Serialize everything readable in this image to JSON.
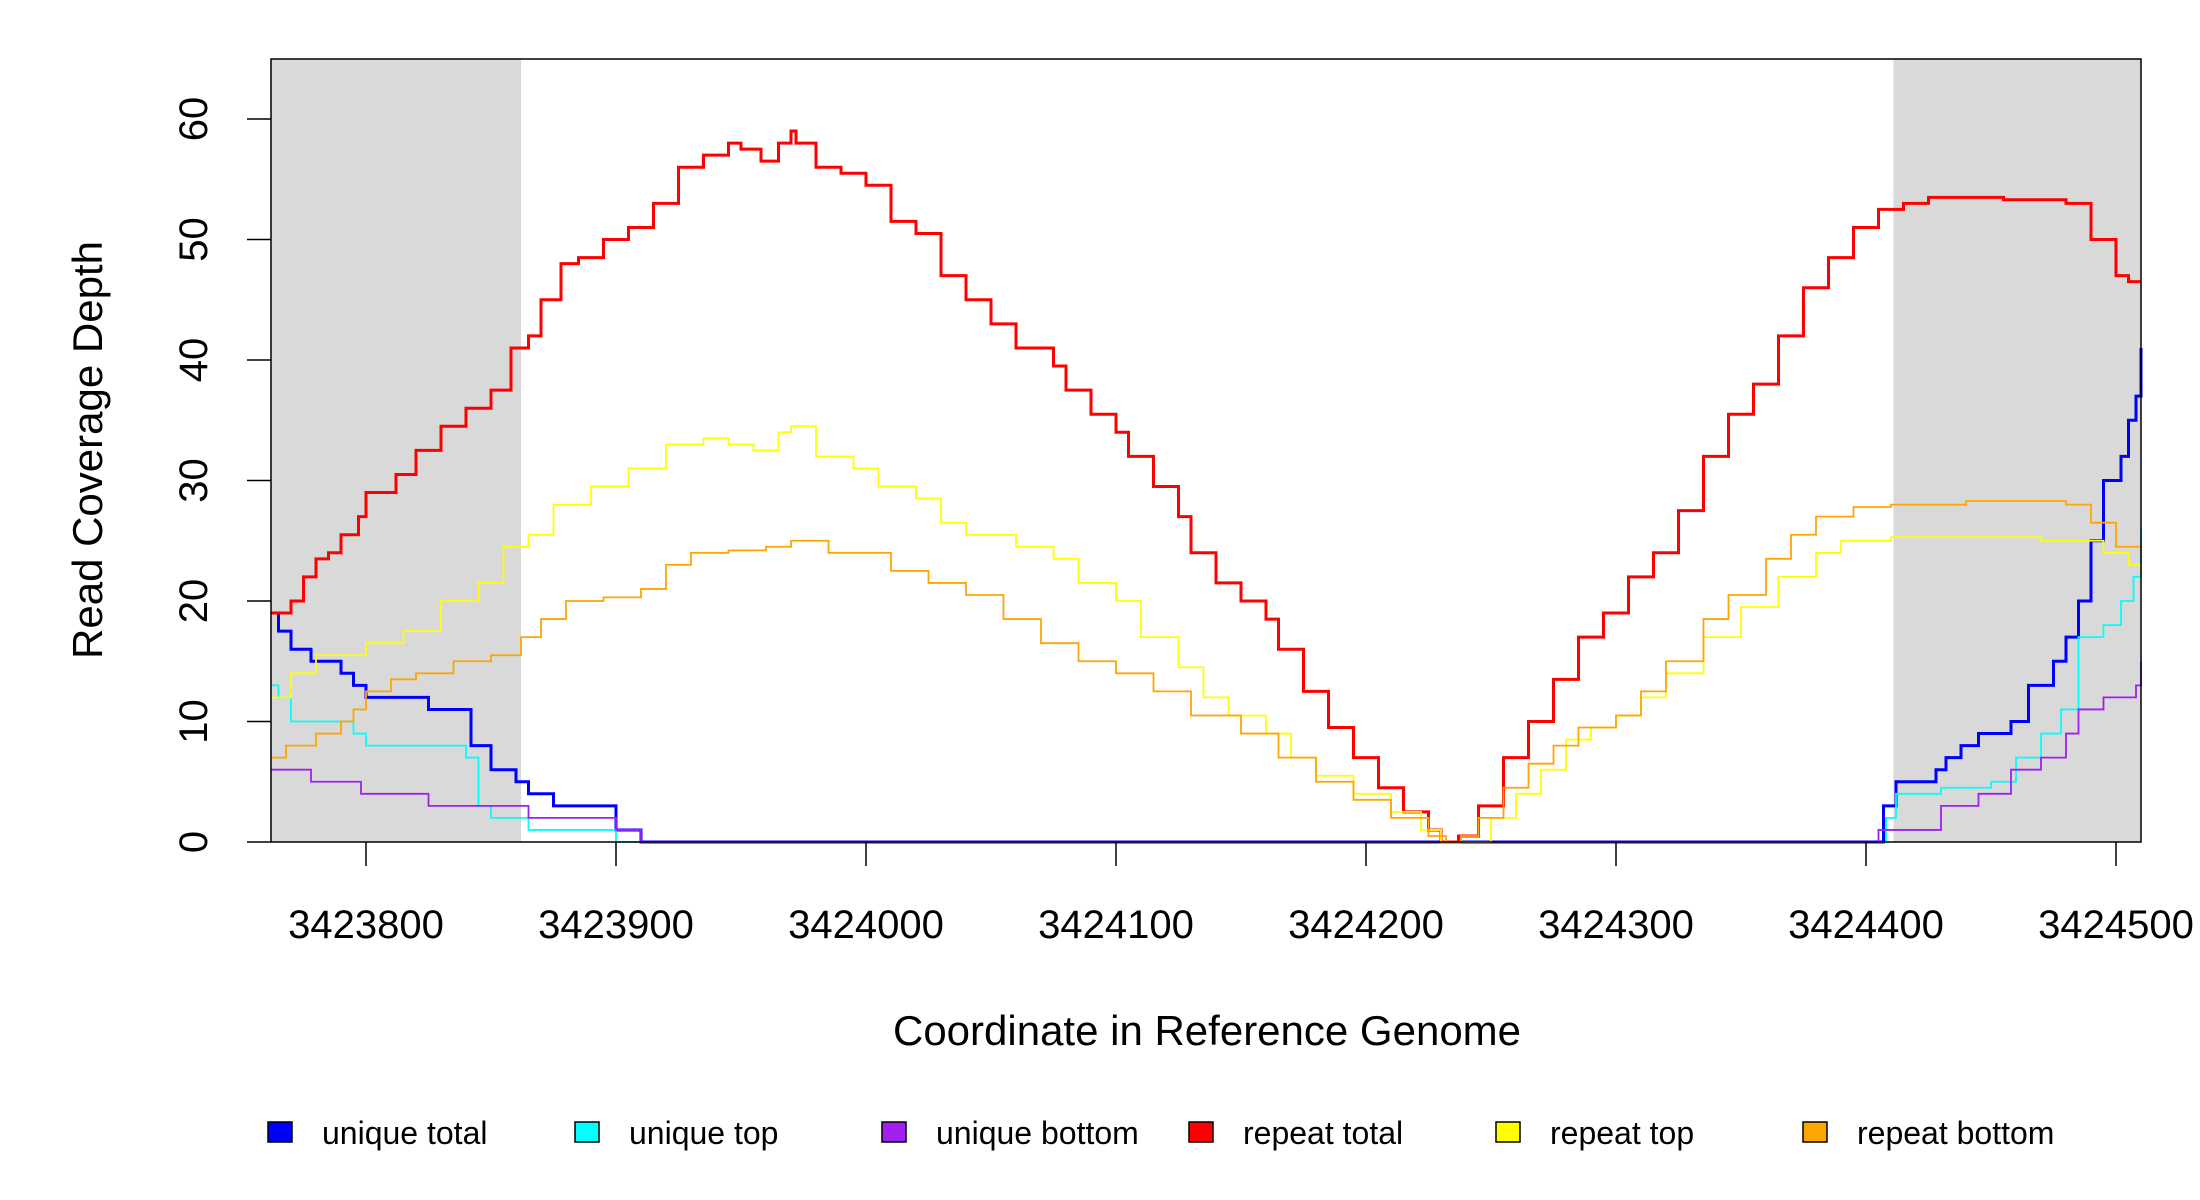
{
  "chart_data": {
    "type": "line",
    "title": "",
    "xlabel": "Coordinate in Reference Genome",
    "ylabel": "Read Coverage Depth",
    "xlim": [
      3423762,
      3424510
    ],
    "ylim": [
      0,
      65
    ],
    "x_ticks": [
      3423800,
      3423900,
      3424000,
      3424100,
      3424200,
      3424300,
      3424400,
      3424500
    ],
    "x_tick_labels": [
      "3423800",
      "3423900",
      "3424000",
      "3424100",
      "3424200",
      "3424300",
      "3424400",
      "3424500"
    ],
    "y_ticks": [
      0,
      10,
      20,
      30,
      40,
      50,
      60
    ],
    "y_tick_labels": [
      "0",
      "10",
      "20",
      "30",
      "40",
      "50",
      "60"
    ],
    "grid": false,
    "legend_placement": "bottom",
    "shaded_regions": [
      [
        3423762,
        3423862
      ],
      [
        3424411,
        3424510
      ]
    ],
    "shade_color": "#d9d9d9",
    "series": [
      {
        "name": "unique total",
        "color": "#0000ff",
        "width": 3,
        "points": [
          [
            3423762,
            19
          ],
          [
            3423765,
            17.5
          ],
          [
            3423770,
            16
          ],
          [
            3423778,
            15
          ],
          [
            3423790,
            14
          ],
          [
            3423795,
            13
          ],
          [
            3423800,
            12
          ],
          [
            3423825,
            11
          ],
          [
            3423842,
            8
          ],
          [
            3423850,
            6
          ],
          [
            3423860,
            5
          ],
          [
            3423865,
            4
          ],
          [
            3423875,
            3
          ],
          [
            3423900,
            1
          ],
          [
            3423910,
            0
          ],
          [
            3424404,
            0
          ],
          [
            3424407,
            3
          ],
          [
            3424412,
            5
          ],
          [
            3424428,
            6
          ],
          [
            3424432,
            7
          ],
          [
            3424438,
            8
          ],
          [
            3424445,
            9
          ],
          [
            3424458,
            10
          ],
          [
            3424465,
            13
          ],
          [
            3424475,
            15
          ],
          [
            3424480,
            17
          ],
          [
            3424485,
            20
          ],
          [
            3424490,
            25
          ],
          [
            3424495,
            30
          ],
          [
            3424502,
            32
          ],
          [
            3424505,
            35
          ],
          [
            3424508,
            37
          ],
          [
            3424510,
            41
          ]
        ]
      },
      {
        "name": "unique top",
        "color": "#00ffff",
        "width": 1.8,
        "points": [
          [
            3423762,
            13
          ],
          [
            3423765,
            12
          ],
          [
            3423770,
            10
          ],
          [
            3423795,
            9
          ],
          [
            3423800,
            8
          ],
          [
            3423840,
            7
          ],
          [
            3423845,
            3
          ],
          [
            3423850,
            2
          ],
          [
            3423865,
            1
          ],
          [
            3423900,
            0
          ],
          [
            3424404,
            0
          ],
          [
            3424408,
            2
          ],
          [
            3424412,
            4
          ],
          [
            3424430,
            4.5
          ],
          [
            3424450,
            5
          ],
          [
            3424460,
            7
          ],
          [
            3424470,
            9
          ],
          [
            3424478,
            11
          ],
          [
            3424485,
            17
          ],
          [
            3424495,
            18
          ],
          [
            3424502,
            20
          ],
          [
            3424507,
            22
          ],
          [
            3424510,
            26
          ]
        ]
      },
      {
        "name": "unique bottom",
        "color": "#a020f0",
        "width": 1.8,
        "points": [
          [
            3423762,
            6
          ],
          [
            3423778,
            5
          ],
          [
            3423798,
            4
          ],
          [
            3423825,
            3
          ],
          [
            3423865,
            2
          ],
          [
            3423900,
            1
          ],
          [
            3423910,
            0
          ],
          [
            3424404,
            0
          ],
          [
            3424405,
            1
          ],
          [
            3424430,
            3
          ],
          [
            3424445,
            4
          ],
          [
            3424458,
            6
          ],
          [
            3424470,
            7
          ],
          [
            3424480,
            9
          ],
          [
            3424485,
            11
          ],
          [
            3424495,
            12
          ],
          [
            3424508,
            13
          ],
          [
            3424510,
            15
          ]
        ]
      },
      {
        "name": "repeat total",
        "color": "#ff0000",
        "width": 3,
        "points": [
          [
            3423762,
            19
          ],
          [
            3423770,
            20
          ],
          [
            3423775,
            22
          ],
          [
            3423780,
            23.5
          ],
          [
            3423785,
            24
          ],
          [
            3423790,
            25.5
          ],
          [
            3423797,
            27
          ],
          [
            3423800,
            29
          ],
          [
            3423812,
            30.5
          ],
          [
            3423820,
            32.5
          ],
          [
            3423830,
            34.5
          ],
          [
            3423840,
            36
          ],
          [
            3423850,
            37.5
          ],
          [
            3423858,
            41
          ],
          [
            3423865,
            42
          ],
          [
            3423870,
            45
          ],
          [
            3423878,
            48
          ],
          [
            3423885,
            48.5
          ],
          [
            3423895,
            50
          ],
          [
            3423905,
            51
          ],
          [
            3423915,
            53
          ],
          [
            3423925,
            56
          ],
          [
            3423935,
            57
          ],
          [
            3423945,
            58
          ],
          [
            3423950,
            57.5
          ],
          [
            3423958,
            56.5
          ],
          [
            3423965,
            58
          ],
          [
            3423970,
            59
          ],
          [
            3423972,
            58
          ],
          [
            3423980,
            56
          ],
          [
            3423990,
            55.5
          ],
          [
            3424000,
            54.5
          ],
          [
            3424010,
            51.5
          ],
          [
            3424020,
            50.5
          ],
          [
            3424030,
            47
          ],
          [
            3424040,
            45
          ],
          [
            3424050,
            43
          ],
          [
            3424060,
            41
          ],
          [
            3424075,
            39.5
          ],
          [
            3424080,
            37.5
          ],
          [
            3424090,
            35.5
          ],
          [
            3424100,
            34
          ],
          [
            3424105,
            32
          ],
          [
            3424115,
            29.5
          ],
          [
            3424125,
            27
          ],
          [
            3424130,
            24
          ],
          [
            3424140,
            21.5
          ],
          [
            3424150,
            20
          ],
          [
            3424160,
            18.5
          ],
          [
            3424165,
            16
          ],
          [
            3424175,
            12.5
          ],
          [
            3424185,
            9.5
          ],
          [
            3424195,
            7
          ],
          [
            3424205,
            4.5
          ],
          [
            3424215,
            2.5
          ],
          [
            3424225,
            1
          ],
          [
            3424230,
            0
          ],
          [
            3424237,
            0.5
          ],
          [
            3424245,
            3
          ],
          [
            3424255,
            7
          ],
          [
            3424265,
            10
          ],
          [
            3424275,
            13.5
          ],
          [
            3424285,
            17
          ],
          [
            3424295,
            19
          ],
          [
            3424305,
            22
          ],
          [
            3424315,
            24
          ],
          [
            3424325,
            27.5
          ],
          [
            3424335,
            32
          ],
          [
            3424345,
            35.5
          ],
          [
            3424355,
            38
          ],
          [
            3424365,
            42
          ],
          [
            3424375,
            46
          ],
          [
            3424385,
            48.5
          ],
          [
            3424395,
            51
          ],
          [
            3424405,
            52.5
          ],
          [
            3424415,
            53
          ],
          [
            3424425,
            53.5
          ],
          [
            3424440,
            53.5
          ],
          [
            3424455,
            53.3
          ],
          [
            3424470,
            53.3
          ],
          [
            3424480,
            53
          ],
          [
            3424490,
            50
          ],
          [
            3424500,
            47
          ],
          [
            3424505,
            46.5
          ],
          [
            3424510,
            46.5
          ]
        ]
      },
      {
        "name": "repeat top",
        "color": "#ffff00",
        "width": 1.8,
        "points": [
          [
            3423762,
            12
          ],
          [
            3423770,
            14
          ],
          [
            3423780,
            15.5
          ],
          [
            3423800,
            16.5
          ],
          [
            3423815,
            17.5
          ],
          [
            3423830,
            20
          ],
          [
            3423845,
            21.5
          ],
          [
            3423855,
            24.5
          ],
          [
            3423865,
            25.5
          ],
          [
            3423875,
            28
          ],
          [
            3423890,
            29.5
          ],
          [
            3423905,
            31
          ],
          [
            3423920,
            33
          ],
          [
            3423935,
            33.5
          ],
          [
            3423945,
            33
          ],
          [
            3423955,
            32.5
          ],
          [
            3423965,
            34
          ],
          [
            3423970,
            34.5
          ],
          [
            3423980,
            32
          ],
          [
            3423995,
            31
          ],
          [
            3424005,
            29.5
          ],
          [
            3424020,
            28.5
          ],
          [
            3424030,
            26.5
          ],
          [
            3424040,
            25.5
          ],
          [
            3424060,
            24.5
          ],
          [
            3424075,
            23.5
          ],
          [
            3424085,
            21.5
          ],
          [
            3424100,
            20
          ],
          [
            3424110,
            17
          ],
          [
            3424125,
            14.5
          ],
          [
            3424135,
            12
          ],
          [
            3424145,
            10.5
          ],
          [
            3424160,
            9
          ],
          [
            3424170,
            7
          ],
          [
            3424180,
            5.5
          ],
          [
            3424195,
            4
          ],
          [
            3424210,
            2.5
          ],
          [
            3424222,
            1
          ],
          [
            3424230,
            0
          ],
          [
            3424240,
            0
          ],
          [
            3424250,
            2
          ],
          [
            3424260,
            4
          ],
          [
            3424270,
            6
          ],
          [
            3424280,
            8.5
          ],
          [
            3424290,
            9.5
          ],
          [
            3424300,
            10.5
          ],
          [
            3424310,
            12
          ],
          [
            3424320,
            14
          ],
          [
            3424335,
            17
          ],
          [
            3424350,
            19.5
          ],
          [
            3424365,
            22
          ],
          [
            3424380,
            24
          ],
          [
            3424390,
            25
          ],
          [
            3424410,
            25.3
          ],
          [
            3424440,
            25.3
          ],
          [
            3424470,
            25
          ],
          [
            3424485,
            25
          ],
          [
            3424495,
            24
          ],
          [
            3424505,
            23
          ],
          [
            3424510,
            22.5
          ]
        ]
      },
      {
        "name": "repeat bottom",
        "color": "#ffa500",
        "width": 1.8,
        "points": [
          [
            3423762,
            7
          ],
          [
            3423768,
            8
          ],
          [
            3423780,
            9
          ],
          [
            3423790,
            10
          ],
          [
            3423795,
            11
          ],
          [
            3423800,
            12.5
          ],
          [
            3423810,
            13.5
          ],
          [
            3423820,
            14
          ],
          [
            3423835,
            15
          ],
          [
            3423850,
            15.5
          ],
          [
            3423862,
            17
          ],
          [
            3423870,
            18.5
          ],
          [
            3423880,
            20
          ],
          [
            3423895,
            20.3
          ],
          [
            3423910,
            21
          ],
          [
            3423920,
            23
          ],
          [
            3423930,
            24
          ],
          [
            3423945,
            24.2
          ],
          [
            3423960,
            24.5
          ],
          [
            3423970,
            25
          ],
          [
            3423985,
            24
          ],
          [
            3423995,
            24
          ],
          [
            3424010,
            22.5
          ],
          [
            3424025,
            21.5
          ],
          [
            3424040,
            20.5
          ],
          [
            3424055,
            18.5
          ],
          [
            3424070,
            16.5
          ],
          [
            3424085,
            15
          ],
          [
            3424100,
            14
          ],
          [
            3424115,
            12.5
          ],
          [
            3424130,
            10.5
          ],
          [
            3424150,
            9
          ],
          [
            3424165,
            7
          ],
          [
            3424180,
            5
          ],
          [
            3424195,
            3.5
          ],
          [
            3424210,
            2
          ],
          [
            3424225,
            0.5
          ],
          [
            3424232,
            0
          ],
          [
            3424238,
            0.5
          ],
          [
            3424245,
            2
          ],
          [
            3424255,
            4.5
          ],
          [
            3424265,
            6.5
          ],
          [
            3424275,
            8
          ],
          [
            3424285,
            9.5
          ],
          [
            3424300,
            10.5
          ],
          [
            3424310,
            12.5
          ],
          [
            3424320,
            15
          ],
          [
            3424335,
            18.5
          ],
          [
            3424345,
            20.5
          ],
          [
            3424360,
            23.5
          ],
          [
            3424370,
            25.5
          ],
          [
            3424380,
            27
          ],
          [
            3424395,
            27.8
          ],
          [
            3424410,
            28
          ],
          [
            3424440,
            28.3
          ],
          [
            3424470,
            28.3
          ],
          [
            3424480,
            28
          ],
          [
            3424490,
            26.5
          ],
          [
            3424500,
            24.5
          ],
          [
            3424510,
            24
          ]
        ]
      }
    ]
  }
}
